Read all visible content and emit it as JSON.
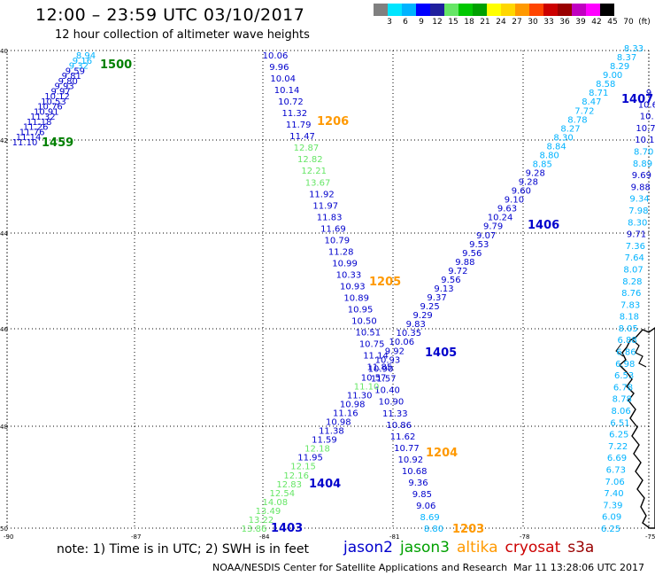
{
  "title": "12:00 – 23:59 UTC 03/10/2017",
  "subtitle": "12 hour collection of altimeter wave heights",
  "colorbar": {
    "colors": [
      "#808080",
      "#00e5ff",
      "#00b3ff",
      "#0000ff",
      "#1f1f9e",
      "#66e666",
      "#00c800",
      "#00a000",
      "#ffff00",
      "#ffd700",
      "#ff9900",
      "#ff4500",
      "#cc0000",
      "#990000",
      "#c000c0",
      "#ff00ff",
      "#000000"
    ],
    "labels": [
      "3",
      "6",
      "9",
      "12",
      "15",
      "18",
      "21",
      "24",
      "27",
      "30",
      "33",
      "36",
      "39",
      "42",
      "45",
      "70",
      "(ft)"
    ]
  },
  "map": {
    "lat_ticks": [
      "40",
      "42",
      "44",
      "46",
      "48",
      "50"
    ],
    "lon_ticks": [
      "-90",
      "-87",
      "-84",
      "-81",
      "-78",
      "-75"
    ]
  },
  "passes": [
    {
      "label": "1500",
      "color": "#008000"
    },
    {
      "label": "1459",
      "color": "#008000"
    },
    {
      "label": "1206",
      "color": "#ff9900"
    },
    {
      "label": "1205",
      "color": "#ff9900"
    },
    {
      "label": "1204",
      "color": "#ff9900"
    },
    {
      "label": "1203",
      "color": "#ff9900"
    },
    {
      "label": "1407",
      "color": "#0000cc"
    },
    {
      "label": "1406",
      "color": "#0000cc"
    },
    {
      "label": "1405",
      "color": "#0000cc"
    },
    {
      "label": "1404",
      "color": "#0000cc"
    },
    {
      "label": "1403",
      "color": "#0000cc"
    }
  ],
  "tracks": {
    "t1206": {
      "values": [
        "10.06",
        "9.96",
        "10.04",
        "10.14",
        "10.72",
        "11.32",
        "11.79",
        "11.47",
        "12.87",
        "12.82",
        "12.21",
        "13.67",
        "11.92",
        "11.97",
        "11.83",
        "11.69",
        "10.79",
        "11.28",
        "10.99",
        "10.33",
        "10.93",
        "10.89",
        "10.95",
        "10.50",
        "10.51",
        "10.75",
        "11.14",
        "11.85",
        "11.57",
        "10.40",
        "10.90",
        "11.33",
        "10.86",
        "11.62",
        "10.77",
        "10.92",
        "10.68",
        "9.36",
        "9.85",
        "9.06",
        "8.69",
        "8.80"
      ],
      "colors": [
        "#0000cc",
        "#0000cc",
        "#0000cc",
        "#0000cc",
        "#0000cc",
        "#0000cc",
        "#0000cc",
        "#0000cc",
        "#66e666",
        "#66e666",
        "#66e666",
        "#66e666",
        "#0000cc",
        "#0000cc",
        "#0000cc",
        "#0000cc",
        "#0000cc",
        "#0000cc",
        "#0000cc",
        "#0000cc",
        "#0000cc",
        "#0000cc",
        "#0000cc",
        "#0000cc",
        "#0000cc",
        "#0000cc",
        "#0000cc",
        "#0000cc",
        "#0000cc",
        "#0000cc",
        "#0000cc",
        "#0000cc",
        "#0000cc",
        "#0000cc",
        "#0000cc",
        "#0000cc",
        "#0000cc",
        "#0000cc",
        "#0000cc",
        "#0000cc",
        "#00b3ff",
        "#00b3ff"
      ]
    },
    "t1406": {
      "values": [
        "8.33",
        "8.37",
        "8.29",
        "9.00",
        "8.58",
        "8.71",
        "8.47",
        "7.72",
        "8.78",
        "8.27",
        "8.30",
        "8.84",
        "8.80",
        "8.85",
        "9.28",
        "9.28",
        "9.60",
        "9.10",
        "9.63",
        "10.24",
        "9.79",
        "9.07",
        "9.53",
        "9.56",
        "9.88",
        "9.72",
        "9.56",
        "9.13",
        "9.37",
        "9.25",
        "9.29",
        "9.83",
        "10.35",
        "10.06",
        "9.92",
        "10.93",
        "10.90",
        "10.57",
        "11.10",
        "11.30",
        "10.98",
        "11.16",
        "10.98",
        "11.38",
        "11.59",
        "12.18",
        "11.95",
        "12.15",
        "12.16",
        "12.83",
        "12.54",
        "14.08",
        "13.49",
        "13.22",
        "13.86"
      ],
      "colors": [
        "#00b3ff",
        "#00b3ff",
        "#00b3ff",
        "#00b3ff",
        "#00b3ff",
        "#00b3ff",
        "#00b3ff",
        "#00b3ff",
        "#00b3ff",
        "#00b3ff",
        "#00b3ff",
        "#00b3ff",
        "#00b3ff",
        "#00b3ff",
        "#0000cc",
        "#0000cc",
        "#0000cc",
        "#0000cc",
        "#0000cc",
        "#0000cc",
        "#0000cc",
        "#0000cc",
        "#0000cc",
        "#0000cc",
        "#0000cc",
        "#0000cc",
        "#0000cc",
        "#0000cc",
        "#0000cc",
        "#0000cc",
        "#0000cc",
        "#0000cc",
        "#0000cc",
        "#0000cc",
        "#0000cc",
        "#0000cc",
        "#0000cc",
        "#0000cc",
        "#66e666",
        "#0000cc",
        "#0000cc",
        "#0000cc",
        "#0000cc",
        "#0000cc",
        "#0000cc",
        "#66e666",
        "#0000cc",
        "#66e666",
        "#66e666",
        "#66e666",
        "#66e666",
        "#66e666",
        "#66e666",
        "#66e666",
        "#66e666"
      ]
    },
    "t1500": {
      "values": [
        "8.94",
        "9.16",
        "9.32",
        "9.59",
        "9.81",
        "9.80",
        "9.93",
        "9.97",
        "10.12",
        "10.53",
        "10.76",
        "10.91",
        "11.32",
        "11.18",
        "11.26",
        "11.76",
        "11.14",
        "11.10"
      ],
      "colors": [
        "#00b3ff",
        "#00b3ff",
        "#00b3ff",
        "#0000cc",
        "#0000cc",
        "#0000cc",
        "#0000cc",
        "#0000cc",
        "#0000cc",
        "#0000cc",
        "#0000cc",
        "#0000cc",
        "#0000cc",
        "#0000cc",
        "#0000cc",
        "#0000cc",
        "#0000cc",
        "#0000cc"
      ]
    },
    "t1407": {
      "values": [
        "9",
        "10.6",
        "10.",
        "10.7",
        "10.1",
        "8.70",
        "8.89",
        "9.69",
        "9.88",
        "9.34",
        "7.98",
        "8.30",
        "9.71",
        "7.36",
        "7.64",
        "8.07",
        "8.28",
        "8.76",
        "7.83",
        "8.18",
        "8.05",
        "6.88",
        "6.86",
        "6.98",
        "6.53",
        "6.78",
        "8.78",
        "8.06",
        "6.51",
        "6.25",
        "7.22",
        "6.69",
        "6.73",
        "7.06",
        "7.40",
        "7.39",
        "6.09",
        "6.25"
      ],
      "colors": [
        "#0000cc",
        "#0000cc",
        "#0000cc",
        "#0000cc",
        "#0000cc",
        "#00b3ff",
        "#00b3ff",
        "#0000cc",
        "#0000cc",
        "#00b3ff",
        "#00b3ff",
        "#00b3ff",
        "#0000cc",
        "#00b3ff",
        "#00b3ff",
        "#00b3ff",
        "#00b3ff",
        "#00b3ff",
        "#00b3ff",
        "#00b3ff",
        "#00b3ff",
        "#00b3ff",
        "#00b3ff",
        "#00b3ff",
        "#00b3ff",
        "#00b3ff",
        "#00b3ff",
        "#00b3ff",
        "#00b3ff",
        "#00b3ff",
        "#00b3ff",
        "#00b3ff",
        "#00b3ff",
        "#00b3ff",
        "#00b3ff",
        "#00b3ff",
        "#00b3ff",
        "#00b3ff"
      ]
    }
  },
  "note": "note: 1) Time is in UTC; 2) SWH is in feet",
  "legend": [
    {
      "label": "jason2",
      "color": "#0000cc"
    },
    {
      "label": "jason3",
      "color": "#00a000"
    },
    {
      "label": "altika",
      "color": "#ff9900"
    },
    {
      "label": "cryosat",
      "color": "#cc0000"
    },
    {
      "label": "s3a",
      "color": "#990000"
    }
  ],
  "footer_left": "NOAA/NESDIS Center for Satellite Applications and Research",
  "footer_right": "Mar 11 13:28:06 UTC 2017"
}
